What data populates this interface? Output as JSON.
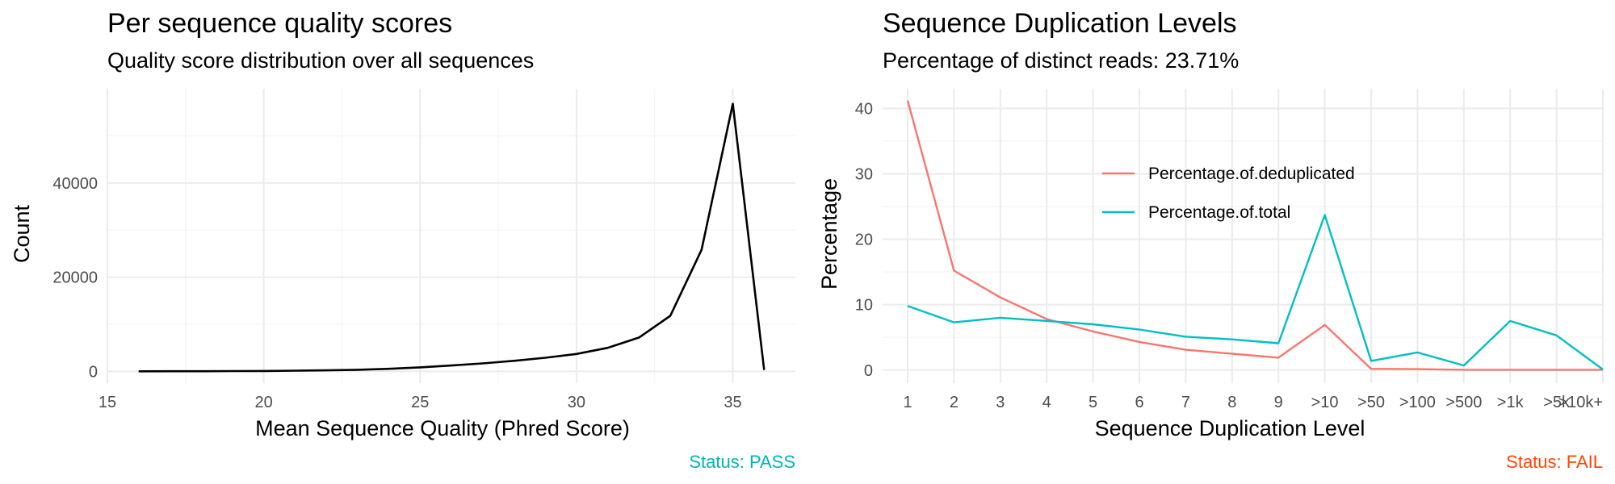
{
  "chart_data": [
    {
      "type": "line",
      "title": "Per sequence quality scores",
      "subtitle": "Quality score distribution over all sequences",
      "xlabel": "Mean Sequence Quality (Phred Score)",
      "ylabel": "Count",
      "xlim": [
        15,
        37
      ],
      "ylim": [
        -2500,
        60000
      ],
      "x_ticks": [
        15,
        20,
        25,
        30,
        35
      ],
      "y_ticks": [
        0,
        20000,
        40000
      ],
      "grid": true,
      "series": [
        {
          "color": "#000000",
          "x": [
            16,
            17,
            18,
            19,
            20,
            21,
            22,
            23,
            24,
            25,
            26,
            27,
            28,
            29,
            30,
            31,
            32,
            33,
            34,
            35,
            36
          ],
          "y": [
            20,
            30,
            40,
            60,
            90,
            150,
            230,
            350,
            550,
            850,
            1250,
            1700,
            2250,
            2900,
            3700,
            5000,
            7200,
            11800,
            25800,
            56800,
            300
          ]
        }
      ],
      "status": "Status: PASS",
      "status_color": "#00b5b8"
    },
    {
      "type": "line",
      "title": "Sequence Duplication Levels",
      "subtitle": "Percentage of distinct reads: 23.71%",
      "xlabel": "Sequence Duplication Level",
      "ylabel": "Percentage",
      "categories": [
        "1",
        "2",
        "3",
        "4",
        "5",
        "6",
        "7",
        "8",
        "9",
        ">10",
        ">50",
        ">100",
        ">500",
        ">1k",
        ">5k",
        ">10k+"
      ],
      "ylim": [
        -2,
        43
      ],
      "y_ticks": [
        0,
        10,
        20,
        30,
        40
      ],
      "grid": true,
      "legend_position": "inside-top-center",
      "series": [
        {
          "name": "Percentage.of.deduplicated",
          "color": "#f8766d",
          "values": [
            41.2,
            15.2,
            11.1,
            7.8,
            5.9,
            4.3,
            3.1,
            2.5,
            1.9,
            6.9,
            0.2,
            0.15,
            0.05,
            0.05,
            0.05,
            0.05
          ]
        },
        {
          "name": "Percentage.of.total",
          "color": "#00bfc4",
          "values": [
            9.8,
            7.3,
            8.0,
            7.5,
            7.0,
            6.2,
            5.1,
            4.7,
            4.1,
            23.7,
            1.4,
            2.7,
            0.7,
            7.5,
            5.3,
            0.1
          ]
        }
      ],
      "status": "Status: FAIL",
      "status_color": "#ff4500"
    }
  ]
}
